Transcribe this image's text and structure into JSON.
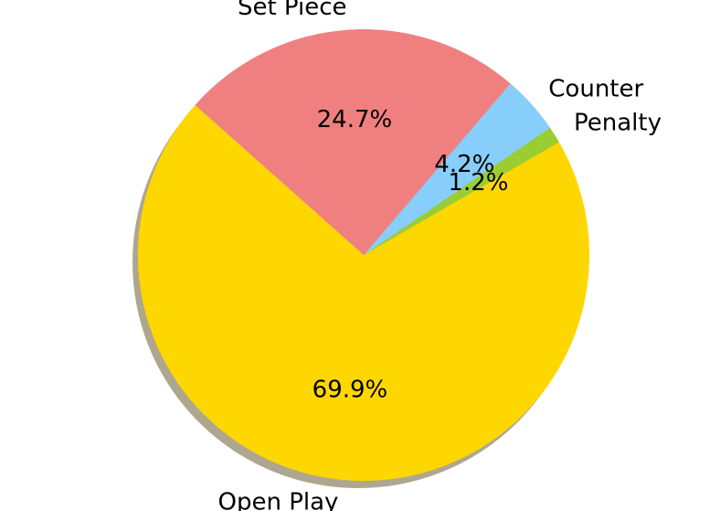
{
  "chart_data": {
    "type": "pie",
    "shadow": true,
    "start_angle_deg": 30,
    "direction": "counterclockwise",
    "slices": [
      {
        "label": "Penalty",
        "value": 1.2,
        "pct_label": "1.2%",
        "color": "#9acd32"
      },
      {
        "label": "Counter",
        "value": 4.2,
        "pct_label": "4.2%",
        "color": "#87cefa"
      },
      {
        "label": "Set Piece",
        "value": 24.7,
        "pct_label": "24.7%",
        "color": "#f08080"
      },
      {
        "label": "Open Play",
        "value": 69.9,
        "pct_label": "69.9%",
        "color": "#ffd700"
      }
    ]
  }
}
